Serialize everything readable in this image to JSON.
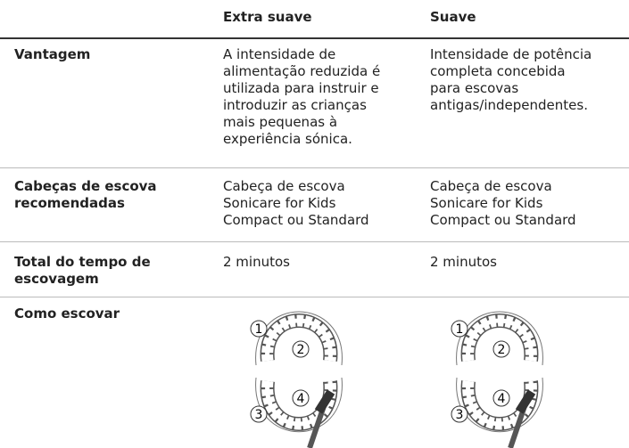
{
  "table": {
    "columns": [
      "Extra suave",
      "Suave"
    ],
    "rows": [
      {
        "label": [
          "Vantagem"
        ],
        "cells": [
          [
            "A intensidade de",
            "alimentação reduzida é",
            "utilizada para instruir e",
            "introduzir as crianças",
            "mais pequenas à",
            "experiência sónica."
          ],
          [
            "Intensidade de potência",
            "completa concebida",
            "para escovas",
            "antigas/independentes."
          ]
        ]
      },
      {
        "label": [
          "Cabeças de escova",
          "recomendadas"
        ],
        "cells": [
          [
            "Cabeça de escova",
            "Sonicare for Kids",
            "Compact ou Standard"
          ],
          [
            "Cabeça de escova",
            "Sonicare for Kids",
            "Compact ou Standard"
          ]
        ]
      },
      {
        "label": [
          "Total do tempo de",
          "escovagem"
        ],
        "cells": [
          [
            "2 minutos"
          ],
          [
            "2 minutos"
          ]
        ]
      },
      {
        "label": [
          "Como escovar"
        ]
      }
    ],
    "diagram_labels": [
      "1",
      "2",
      "3",
      "4"
    ]
  }
}
